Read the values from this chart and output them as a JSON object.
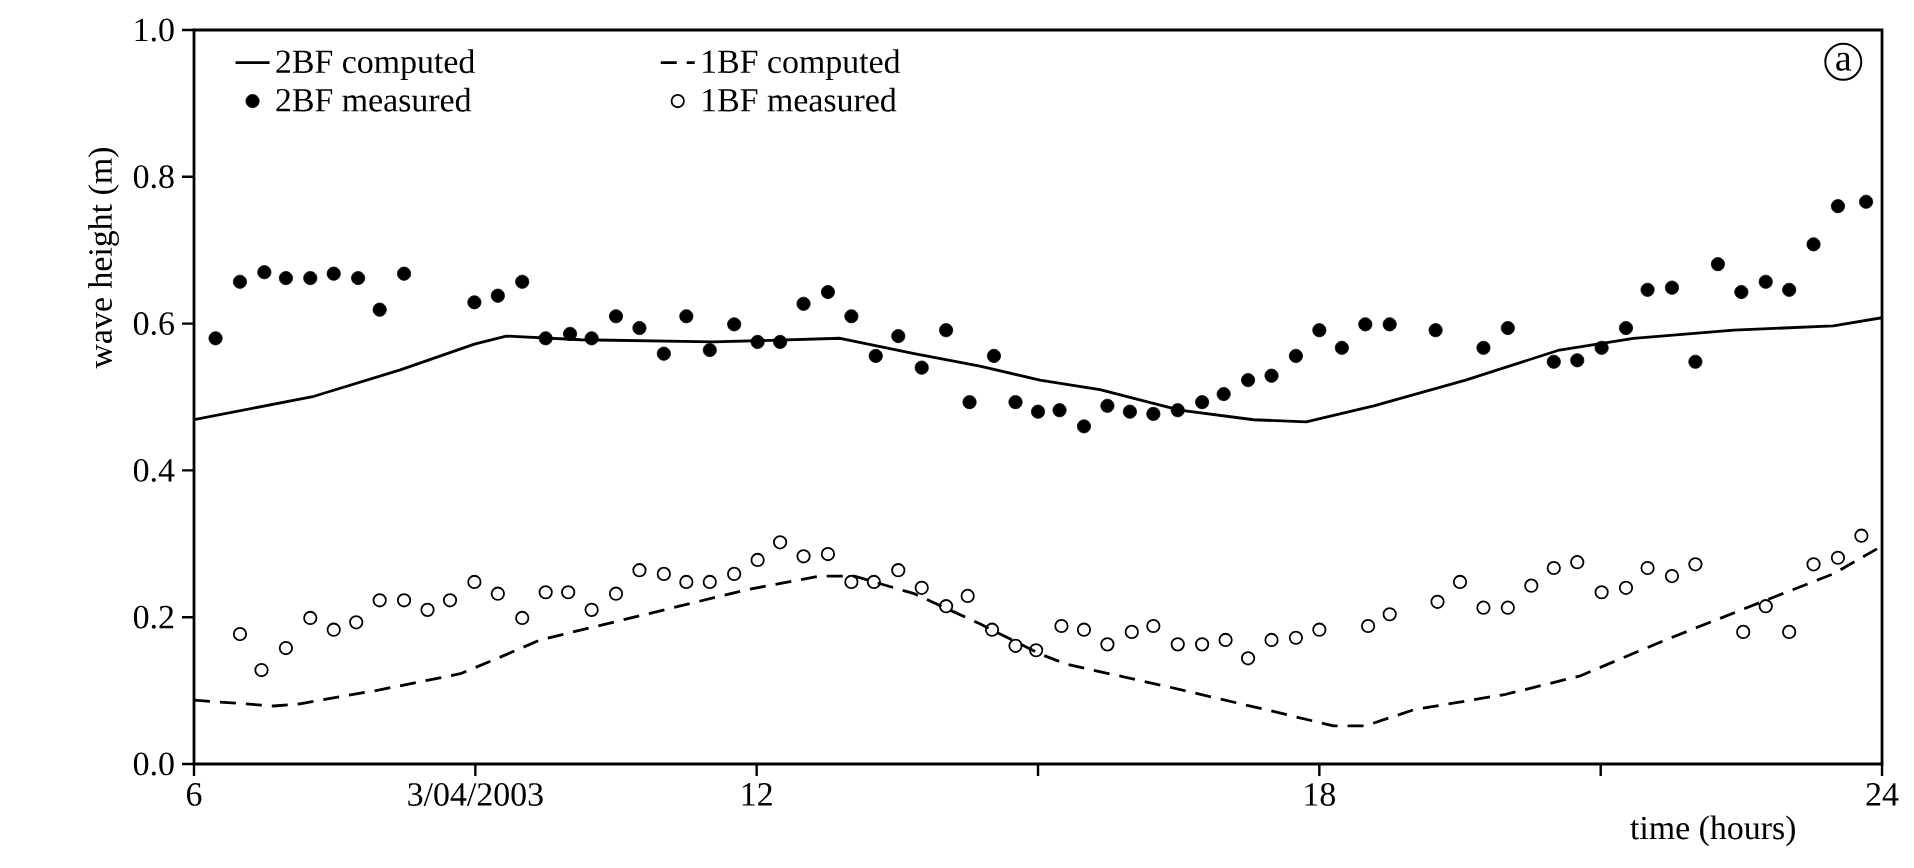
{
  "chart_data": {
    "type": "line",
    "xlabel": "time (hours)",
    "ylabel": "wave height (m)",
    "xlim": [
      6,
      24
    ],
    "ylim": [
      0,
      1
    ],
    "xticks": [
      6,
      {
        "value": 9,
        "label": "3/04/2003"
      },
      12,
      {
        "value": 15,
        "label": null
      },
      18,
      {
        "value": 21,
        "label": null
      },
      24
    ],
    "yticks": [
      {
        "value": 0,
        "label": "0.0"
      },
      {
        "value": 0.2,
        "label": "0.2"
      },
      {
        "value": 0.4,
        "label": "0.4"
      },
      {
        "value": 0.6,
        "label": "0.6"
      },
      {
        "value": 0.8,
        "label": "0.8"
      },
      {
        "value": 1.0,
        "label": "1.0"
      }
    ],
    "legend": "top left",
    "annotations": [
      "a"
    ],
    "series": [
      {
        "name": "2BF computed",
        "line_style": "solid",
        "marker": "none",
        "color": "#000000",
        "x": [
          6.0,
          7.28,
          8.2,
          8.99,
          9.33,
          10.12,
          11.54,
          12.89,
          13.68,
          14.38,
          15.02,
          15.66,
          16.51,
          17.3,
          17.86,
          18.58,
          19.56,
          20.56,
          21.35,
          22.42,
          23.48,
          24.0
        ],
        "values": [
          0.469,
          0.501,
          0.537,
          0.572,
          0.583,
          0.578,
          0.575,
          0.58,
          0.559,
          0.542,
          0.523,
          0.51,
          0.482,
          0.469,
          0.466,
          0.488,
          0.523,
          0.564,
          0.58,
          0.591,
          0.597,
          0.608
        ]
      },
      {
        "name": "1BF computed",
        "line_style": "dashed",
        "marker": "none",
        "color": "#000000",
        "x": [
          6.0,
          6.85,
          7.13,
          7.98,
          8.84,
          9.2,
          9.69,
          10.82,
          11.88,
          12.67,
          13.04,
          13.68,
          14.38,
          15.02,
          15.3,
          16.36,
          17.43,
          18.15,
          18.49,
          19.01,
          19.99,
          20.78,
          21.69,
          22.76,
          23.48,
          24.0
        ],
        "values": [
          0.087,
          0.079,
          0.082,
          0.101,
          0.123,
          0.142,
          0.169,
          0.204,
          0.237,
          0.256,
          0.256,
          0.232,
          0.191,
          0.15,
          0.136,
          0.106,
          0.074,
          0.052,
          0.052,
          0.074,
          0.095,
          0.12,
          0.169,
          0.223,
          0.259,
          0.297
        ]
      },
      {
        "name": "2BF measured",
        "type": "scatter",
        "marker": "circle",
        "color": "#000000",
        "x": [
          6.23,
          6.49,
          6.75,
          6.98,
          7.24,
          7.49,
          7.75,
          7.98,
          8.24,
          8.99,
          9.24,
          9.5,
          9.75,
          10.01,
          10.24,
          10.5,
          10.75,
          11.01,
          11.25,
          11.5,
          11.76,
          12.01,
          12.25,
          12.5,
          12.76,
          13.01,
          13.27,
          13.51,
          13.76,
          14.02,
          14.27,
          14.53,
          14.76,
          15.0,
          15.23,
          15.49,
          15.74,
          15.98,
          16.23,
          16.49,
          16.75,
          16.98,
          17.24,
          17.49,
          17.75,
          18.0,
          18.24,
          18.49,
          18.75,
          19.24,
          19.75,
          20.01,
          20.5,
          20.75,
          21.01,
          21.27,
          21.5,
          21.76,
          22.01,
          22.25,
          22.5,
          22.76,
          23.01,
          23.27,
          23.53,
          23.83
        ],
        "values": [
          0.58,
          0.657,
          0.67,
          0.662,
          0.662,
          0.668,
          0.662,
          0.619,
          0.668,
          0.629,
          0.638,
          0.657,
          0.58,
          0.586,
          0.58,
          0.61,
          0.594,
          0.559,
          0.61,
          0.564,
          0.599,
          0.575,
          0.575,
          0.627,
          0.643,
          0.61,
          0.556,
          0.583,
          0.54,
          0.591,
          0.493,
          0.556,
          0.493,
          0.48,
          0.482,
          0.46,
          0.488,
          0.48,
          0.477,
          0.482,
          0.493,
          0.504,
          0.523,
          0.529,
          0.556,
          0.591,
          0.567,
          0.599,
          0.599,
          0.591,
          0.567,
          0.594,
          0.548,
          0.55,
          0.567,
          0.594,
          0.646,
          0.649,
          0.548,
          0.681,
          0.643,
          0.657,
          0.646,
          0.708,
          0.76,
          0.766
        ]
      },
      {
        "name": "1BF measured",
        "type": "scatter",
        "marker": "open circle",
        "color": "#000000",
        "x": [
          6.49,
          6.72,
          6.98,
          7.24,
          7.49,
          7.73,
          7.98,
          8.24,
          8.49,
          8.73,
          8.99,
          9.24,
          9.5,
          9.75,
          9.99,
          10.24,
          10.5,
          10.75,
          11.01,
          11.25,
          11.5,
          11.76,
          12.01,
          12.25,
          12.5,
          12.76,
          13.01,
          13.25,
          13.51,
          13.76,
          14.02,
          14.25,
          14.51,
          14.76,
          14.98,
          15.25,
          15.49,
          15.74,
          16.0,
          16.23,
          16.49,
          16.75,
          17.0,
          17.24,
          17.49,
          17.75,
          18.0,
          18.52,
          18.75,
          19.26,
          19.5,
          19.75,
          20.01,
          20.26,
          20.5,
          20.75,
          21.01,
          21.27,
          21.5,
          21.76,
          22.01,
          22.52,
          22.76,
          23.01,
          23.27,
          23.53,
          23.78
        ],
        "values": [
          0.177,
          0.128,
          0.158,
          0.199,
          0.183,
          0.193,
          0.223,
          0.223,
          0.21,
          0.223,
          0.248,
          0.232,
          0.199,
          0.234,
          0.234,
          0.21,
          0.232,
          0.264,
          0.259,
          0.248,
          0.248,
          0.259,
          0.278,
          0.302,
          0.283,
          0.286,
          0.248,
          0.248,
          0.264,
          0.24,
          0.215,
          0.229,
          0.183,
          0.161,
          0.155,
          0.188,
          0.183,
          0.163,
          0.18,
          0.188,
          0.163,
          0.163,
          0.169,
          0.144,
          0.169,
          0.172,
          0.183,
          0.188,
          0.204,
          0.221,
          0.248,
          0.213,
          0.213,
          0.243,
          0.267,
          0.275,
          0.234,
          0.24,
          0.267,
          0.256,
          0.272,
          0.18,
          0.215,
          0.18,
          0.272,
          0.281,
          0.311
        ]
      }
    ]
  }
}
